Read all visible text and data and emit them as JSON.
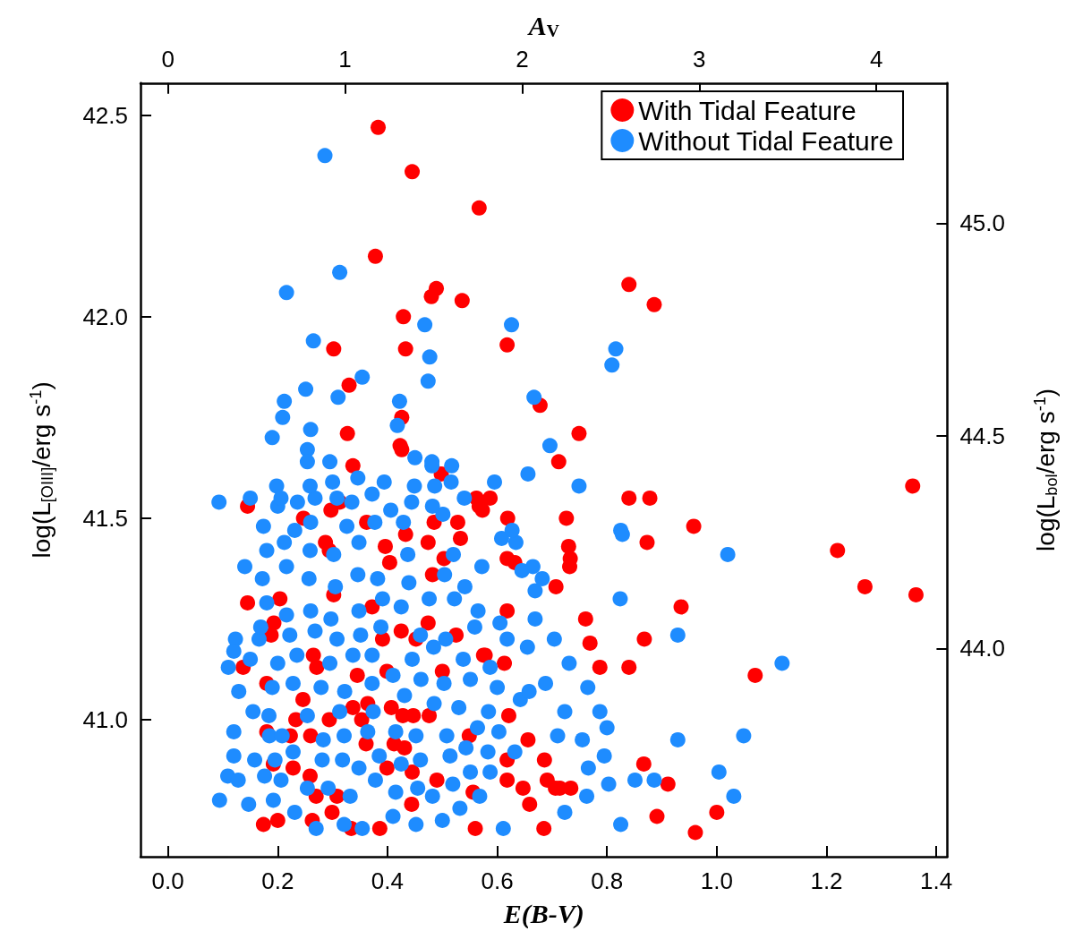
{
  "chart_data": {
    "type": "scatter",
    "xlabel": "E(B-V)",
    "x2label": "A$_{V}$",
    "ylabel": "log(L$_{[OIII]}$/erg s$^{-1}$)",
    "y2label": "log(L$_{bol}$/erg s$^{-1}$)",
    "xlim": [
      -0.05,
      1.42
    ],
    "xticks": [
      {
        "value": 0,
        "label": "0.0"
      },
      0.2,
      0.4,
      0.6,
      0.8,
      {
        "value": 1,
        "label": "1.0"
      },
      1.2,
      1.4
    ],
    "x2lim": [
      -0.155,
      4.4
    ],
    "x2ticks": [
      0,
      1,
      2,
      3,
      4
    ],
    "ylim": [
      40.66,
      42.58
    ],
    "yticks": [
      {
        "value": 41,
        "label": "41.0"
      },
      41.5,
      {
        "value": 42,
        "label": "42.0"
      },
      42.5
    ],
    "y2lim": [
      43.51,
      45.33
    ],
    "y2ticks": [
      {
        "value": 44,
        "label": "44.0"
      },
      44.5,
      {
        "value": 45,
        "label": "45.0"
      }
    ],
    "legend": "top right",
    "marker": "circle",
    "series": [
      {
        "name": "With Tidal Feature",
        "color": "#ff0000",
        "x": [
          0.383,
          0.445,
          0.567,
          0.378,
          0.84,
          0.489,
          0.48,
          0.536,
          0.886,
          0.429,
          0.618,
          0.302,
          0.433,
          0.33,
          0.678,
          0.426,
          0.327,
          0.749,
          0.423,
          0.426,
          0.712,
          0.337,
          0.498,
          0.84,
          0.878,
          1.357,
          0.562,
          0.567,
          0.587,
          1.22,
          0.958,
          0.313,
          0.297,
          0.619,
          0.528,
          0.573,
          0.145,
          0.247,
          0.362,
          0.396,
          0.287,
          0.485,
          0.433,
          0.474,
          0.533,
          0.294,
          0.404,
          0.482,
          0.632,
          0.726,
          1.27,
          0.873,
          1.363,
          0.73,
          0.733,
          0.732,
          0.935,
          0.707,
          0.618,
          0.618,
          0.503,
          0.145,
          0.204,
          0.302,
          0.372,
          0.425,
          0.474,
          0.391,
          0.452,
          0.399,
          0.761,
          0.769,
          0.787,
          0.868,
          0.84,
          1.07,
          0.575,
          0.578,
          0.613,
          0.525,
          0.5,
          0.193,
          0.188,
          0.265,
          0.271,
          0.246,
          0.137,
          0.18,
          0.345,
          0.364,
          0.407,
          0.428,
          0.447,
          0.476,
          0.233,
          0.223,
          0.26,
          0.294,
          0.337,
          0.353,
          0.361,
          0.412,
          0.431,
          0.399,
          0.445,
          0.49,
          0.549,
          0.621,
          0.656,
          0.618,
          0.686,
          0.618,
          0.647,
          0.706,
          0.714,
          0.734,
          0.691,
          0.659,
          0.685,
          0.867,
          0.911,
          0.891,
          0.961,
          1.0,
          0.174,
          0.2,
          0.263,
          0.27,
          0.308,
          0.299,
          0.334,
          0.386,
          0.444,
          0.56,
          0.556,
          0.192,
          0.228,
          0.259,
          0.18
        ],
        "values": [
          42.47,
          42.36,
          42.27,
          42.15,
          42.08,
          42.07,
          42.05,
          42.04,
          42.03,
          42.0,
          41.93,
          41.92,
          41.92,
          41.83,
          41.78,
          41.75,
          41.71,
          41.71,
          41.68,
          41.67,
          41.64,
          41.63,
          41.61,
          41.55,
          41.55,
          41.58,
          41.55,
          41.53,
          41.55,
          41.42,
          41.48,
          41.54,
          41.52,
          41.5,
          41.49,
          41.52,
          41.53,
          41.5,
          41.49,
          41.43,
          41.44,
          41.49,
          41.46,
          41.44,
          41.45,
          41.42,
          41.39,
          41.36,
          41.39,
          41.5,
          41.33,
          41.44,
          41.31,
          41.43,
          41.4,
          41.38,
          41.28,
          41.33,
          41.4,
          41.27,
          41.4,
          41.29,
          41.3,
          41.31,
          41.28,
          41.22,
          41.24,
          41.2,
          41.2,
          41.12,
          41.25,
          41.19,
          41.13,
          41.2,
          41.13,
          41.11,
          41.16,
          41.16,
          41.14,
          41.21,
          41.12,
          41.24,
          41.21,
          41.16,
          41.13,
          41.05,
          41.13,
          41.09,
          41.11,
          41.04,
          41.03,
          41.01,
          41.01,
          41.01,
          41.0,
          40.96,
          40.96,
          41.0,
          41.03,
          41.0,
          40.94,
          40.94,
          40.93,
          40.88,
          40.87,
          40.85,
          40.96,
          41.01,
          40.95,
          40.9,
          40.9,
          40.85,
          40.83,
          40.83,
          40.83,
          40.83,
          40.85,
          40.79,
          40.73,
          40.89,
          40.84,
          40.76,
          40.72,
          40.77,
          40.74,
          40.75,
          40.75,
          40.81,
          40.81,
          40.77,
          40.73,
          40.73,
          40.79,
          40.73,
          40.82,
          40.89,
          40.88,
          40.86,
          40.97
        ]
      },
      {
        "name": "Without Tidal Feature",
        "color": "#1e8cff",
        "x": [
          0.286,
          0.216,
          0.313,
          0.265,
          0.354,
          0.31,
          0.251,
          0.212,
          0.209,
          0.19,
          0.26,
          0.254,
          0.295,
          0.468,
          0.477,
          0.474,
          0.626,
          0.816,
          0.809,
          0.667,
          0.696,
          0.749,
          0.656,
          0.422,
          0.418,
          0.481,
          0.486,
          1.02,
          0.825,
          0.828,
          0.824,
          0.929,
          1.119,
          1.049,
          1.004,
          1.031,
          0.929,
          0.886,
          0.851,
          0.803,
          0.795,
          0.8,
          0.787,
          0.765,
          0.731,
          0.704,
          0.669,
          0.669,
          0.682,
          0.665,
          0.634,
          0.645,
          0.605,
          0.618,
          0.655,
          0.688,
          0.723,
          0.71,
          0.755,
          0.766,
          0.763,
          0.825,
          0.723,
          0.611,
          0.568,
          0.532,
          0.5,
          0.452,
          0.41,
          0.354,
          0.321,
          0.27,
          0.231,
          0.192,
          0.147,
          0.094,
          0.109,
          0.128,
          0.176,
          0.206,
          0.254,
          0.292,
          0.332,
          0.378,
          0.415,
          0.455,
          0.482,
          0.519,
          0.551,
          0.587,
          0.12,
          0.158,
          0.195,
          0.228,
          0.281,
          0.318,
          0.348,
          0.385,
          0.425,
          0.46,
          0.514,
          0.543,
          0.583,
          0.632,
          0.12,
          0.185,
          0.208,
          0.283,
          0.321,
          0.364,
          0.415,
          0.452,
          0.508,
          0.564,
          0.603,
          0.155,
          0.184,
          0.254,
          0.313,
          0.374,
          0.431,
          0.485,
          0.53,
          0.584,
          0.642,
          0.129,
          0.19,
          0.228,
          0.279,
          0.322,
          0.372,
          0.41,
          0.461,
          0.503,
          0.551,
          0.6,
          0.658,
          0.11,
          0.15,
          0.2,
          0.235,
          0.295,
          0.337,
          0.372,
          0.445,
          0.484,
          0.538,
          0.587,
          0.123,
          0.166,
          0.222,
          0.268,
          0.308,
          0.351,
          0.388,
          0.46,
          0.506,
          0.559,
          0.12,
          0.169,
          0.18,
          0.216,
          0.26,
          0.297,
          0.348,
          0.391,
          0.425,
          0.476,
          0.522,
          0.565,
          0.172,
          0.14,
          0.216,
          0.257,
          0.305,
          0.346,
          0.382,
          0.439,
          0.504,
          0.541,
          0.18,
          0.212,
          0.259,
          0.302,
          0.348,
          0.437,
          0.52,
          0.572,
          0.174,
          0.231,
          0.26,
          0.326,
          0.377,
          0.429,
          0.501,
          0.608,
          0.627,
          0.093,
          0.15,
          0.2,
          0.198,
          0.206,
          0.236,
          0.268,
          0.308,
          0.335,
          0.372,
          0.406,
          0.444,
          0.482,
          0.54,
          0.259,
          0.3,
          0.346,
          0.394,
          0.449,
          0.516,
          0.595,
          0.254,
          0.481,
          0.517,
          0.45
        ],
        "values": [
          42.4,
          42.06,
          42.11,
          41.94,
          41.85,
          41.8,
          41.82,
          41.79,
          41.75,
          41.7,
          41.72,
          41.67,
          41.64,
          41.98,
          41.9,
          41.84,
          41.98,
          41.92,
          41.88,
          41.8,
          41.68,
          41.58,
          41.61,
          41.79,
          41.73,
          41.63,
          41.58,
          41.41,
          41.47,
          41.46,
          41.3,
          41.21,
          41.14,
          40.96,
          40.87,
          40.81,
          40.95,
          40.85,
          40.85,
          40.84,
          40.91,
          40.98,
          41.02,
          41.08,
          41.14,
          41.2,
          41.25,
          41.32,
          41.35,
          41.38,
          41.44,
          41.37,
          41.24,
          41.2,
          41.18,
          41.09,
          41.02,
          40.96,
          40.95,
          40.88,
          40.81,
          40.74,
          40.77,
          40.73,
          40.81,
          40.78,
          40.75,
          40.74,
          40.76,
          40.73,
          40.74,
          40.73,
          40.77,
          40.8,
          40.79,
          40.8,
          40.86,
          40.85,
          40.86,
          40.85,
          40.83,
          40.83,
          40.81,
          40.85,
          40.82,
          40.83,
          40.81,
          40.84,
          40.87,
          40.87,
          40.91,
          40.9,
          40.9,
          40.92,
          40.9,
          40.9,
          40.88,
          40.91,
          40.89,
          40.9,
          40.91,
          40.93,
          40.92,
          40.92,
          40.97,
          40.96,
          40.96,
          40.95,
          40.96,
          40.97,
          40.97,
          40.96,
          40.96,
          40.98,
          40.97,
          41.02,
          41.01,
          41.01,
          41.02,
          41.02,
          41.06,
          41.04,
          41.03,
          41.02,
          41.05,
          41.07,
          41.08,
          41.09,
          41.08,
          41.07,
          41.09,
          41.11,
          41.1,
          41.09,
          41.1,
          41.08,
          41.07,
          41.13,
          41.15,
          41.14,
          41.16,
          41.14,
          41.16,
          41.16,
          41.15,
          41.18,
          41.15,
          41.13,
          41.2,
          41.2,
          41.21,
          41.22,
          41.2,
          41.21,
          41.23,
          41.21,
          41.2,
          41.23,
          41.17,
          41.23,
          41.29,
          41.26,
          41.27,
          41.25,
          41.27,
          41.3,
          41.28,
          41.3,
          41.3,
          41.27,
          41.35,
          41.38,
          41.38,
          41.35,
          41.33,
          41.36,
          41.35,
          41.34,
          41.36,
          41.33,
          41.42,
          41.44,
          41.42,
          41.41,
          41.44,
          41.41,
          41.41,
          41.38,
          41.48,
          41.47,
          41.49,
          41.48,
          41.49,
          41.49,
          41.51,
          41.45,
          41.47,
          41.54,
          41.55,
          41.53,
          41.58,
          41.55,
          41.54,
          41.55,
          41.55,
          41.54,
          41.56,
          41.52,
          41.54,
          41.53,
          41.55,
          41.58,
          41.59,
          41.6,
          41.59,
          41.58,
          41.59,
          41.59,
          41.64,
          41.64,
          41.63,
          41.65
        ]
      }
    ]
  }
}
